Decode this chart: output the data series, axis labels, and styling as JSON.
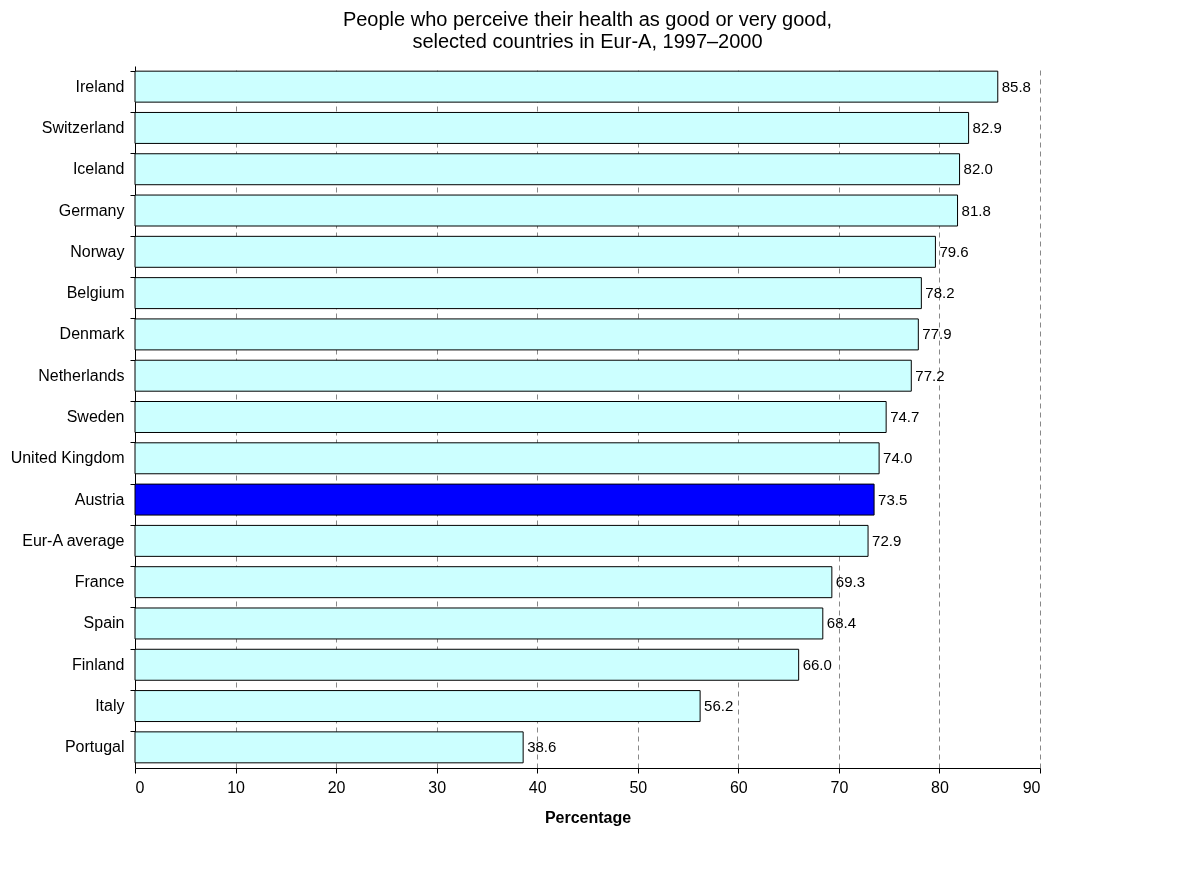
{
  "chart_data": {
    "type": "bar",
    "orientation": "horizontal",
    "title": "People who perceive their health as good or very good,\nselected countries in Eur-A, 1997–2000",
    "xlabel": "Percentage",
    "categories": [
      "Ireland",
      "Switzerland",
      "Iceland",
      "Germany",
      "Norway",
      "Belgium",
      "Denmark",
      "Netherlands",
      "Sweden",
      "United Kingdom",
      "Austria",
      "Eur-A average",
      "France",
      "Spain",
      "Finland",
      "Italy",
      "Portugal"
    ],
    "values": [
      85.8,
      82.9,
      82.0,
      81.8,
      79.6,
      78.2,
      77.9,
      77.2,
      74.7,
      74.0,
      73.5,
      72.9,
      69.3,
      68.4,
      66.0,
      56.2,
      38.6
    ],
    "value_labels": [
      "85.8",
      "82.9",
      "82.0",
      "81.8",
      "79.6",
      "78.2",
      "77.9",
      "77.2",
      "74.7",
      "74.0",
      "73.5",
      "72.9",
      "69.3",
      "68.4",
      "66.0",
      "56.2",
      "38.6"
    ],
    "colors": [
      "#ccffff",
      "#ccffff",
      "#ccffff",
      "#ccffff",
      "#ccffff",
      "#ccffff",
      "#ccffff",
      "#ccffff",
      "#ccffff",
      "#ccffff",
      "#0000ff",
      "#ccffff",
      "#ccffff",
      "#ccffff",
      "#ccffff",
      "#ccffff",
      "#ccffff"
    ],
    "xlim": [
      0,
      90
    ],
    "xticks": [
      0,
      10,
      20,
      30,
      40,
      50,
      60,
      70,
      80,
      90
    ],
    "grid": "x",
    "legend": false
  }
}
